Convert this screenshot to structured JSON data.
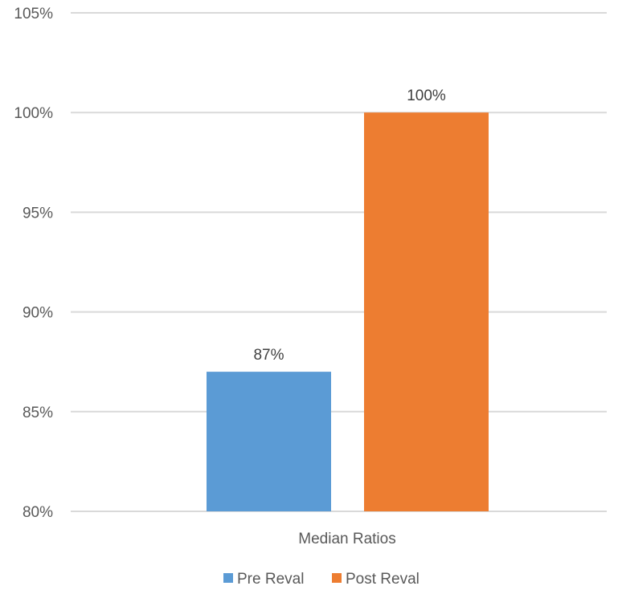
{
  "chart_data": {
    "type": "bar",
    "title": "",
    "xlabel": "",
    "ylabel": "",
    "categories": [
      "Median Ratios"
    ],
    "series": [
      {
        "name": "Pre Reval",
        "values": [
          87
        ],
        "label": "87%",
        "color": "#5b9bd5"
      },
      {
        "name": "Post Reval",
        "values": [
          100
        ],
        "label": "100%",
        "color": "#ed7d31"
      }
    ],
    "ylim": [
      80,
      105
    ],
    "yticks": [
      {
        "value": 80,
        "label": "80%"
      },
      {
        "value": 85,
        "label": "85%"
      },
      {
        "value": 90,
        "label": "90%"
      },
      {
        "value": 95,
        "label": "95%"
      },
      {
        "value": 100,
        "label": "100%"
      },
      {
        "value": 105,
        "label": "105%"
      }
    ],
    "grid": true,
    "legend": "bottom"
  }
}
